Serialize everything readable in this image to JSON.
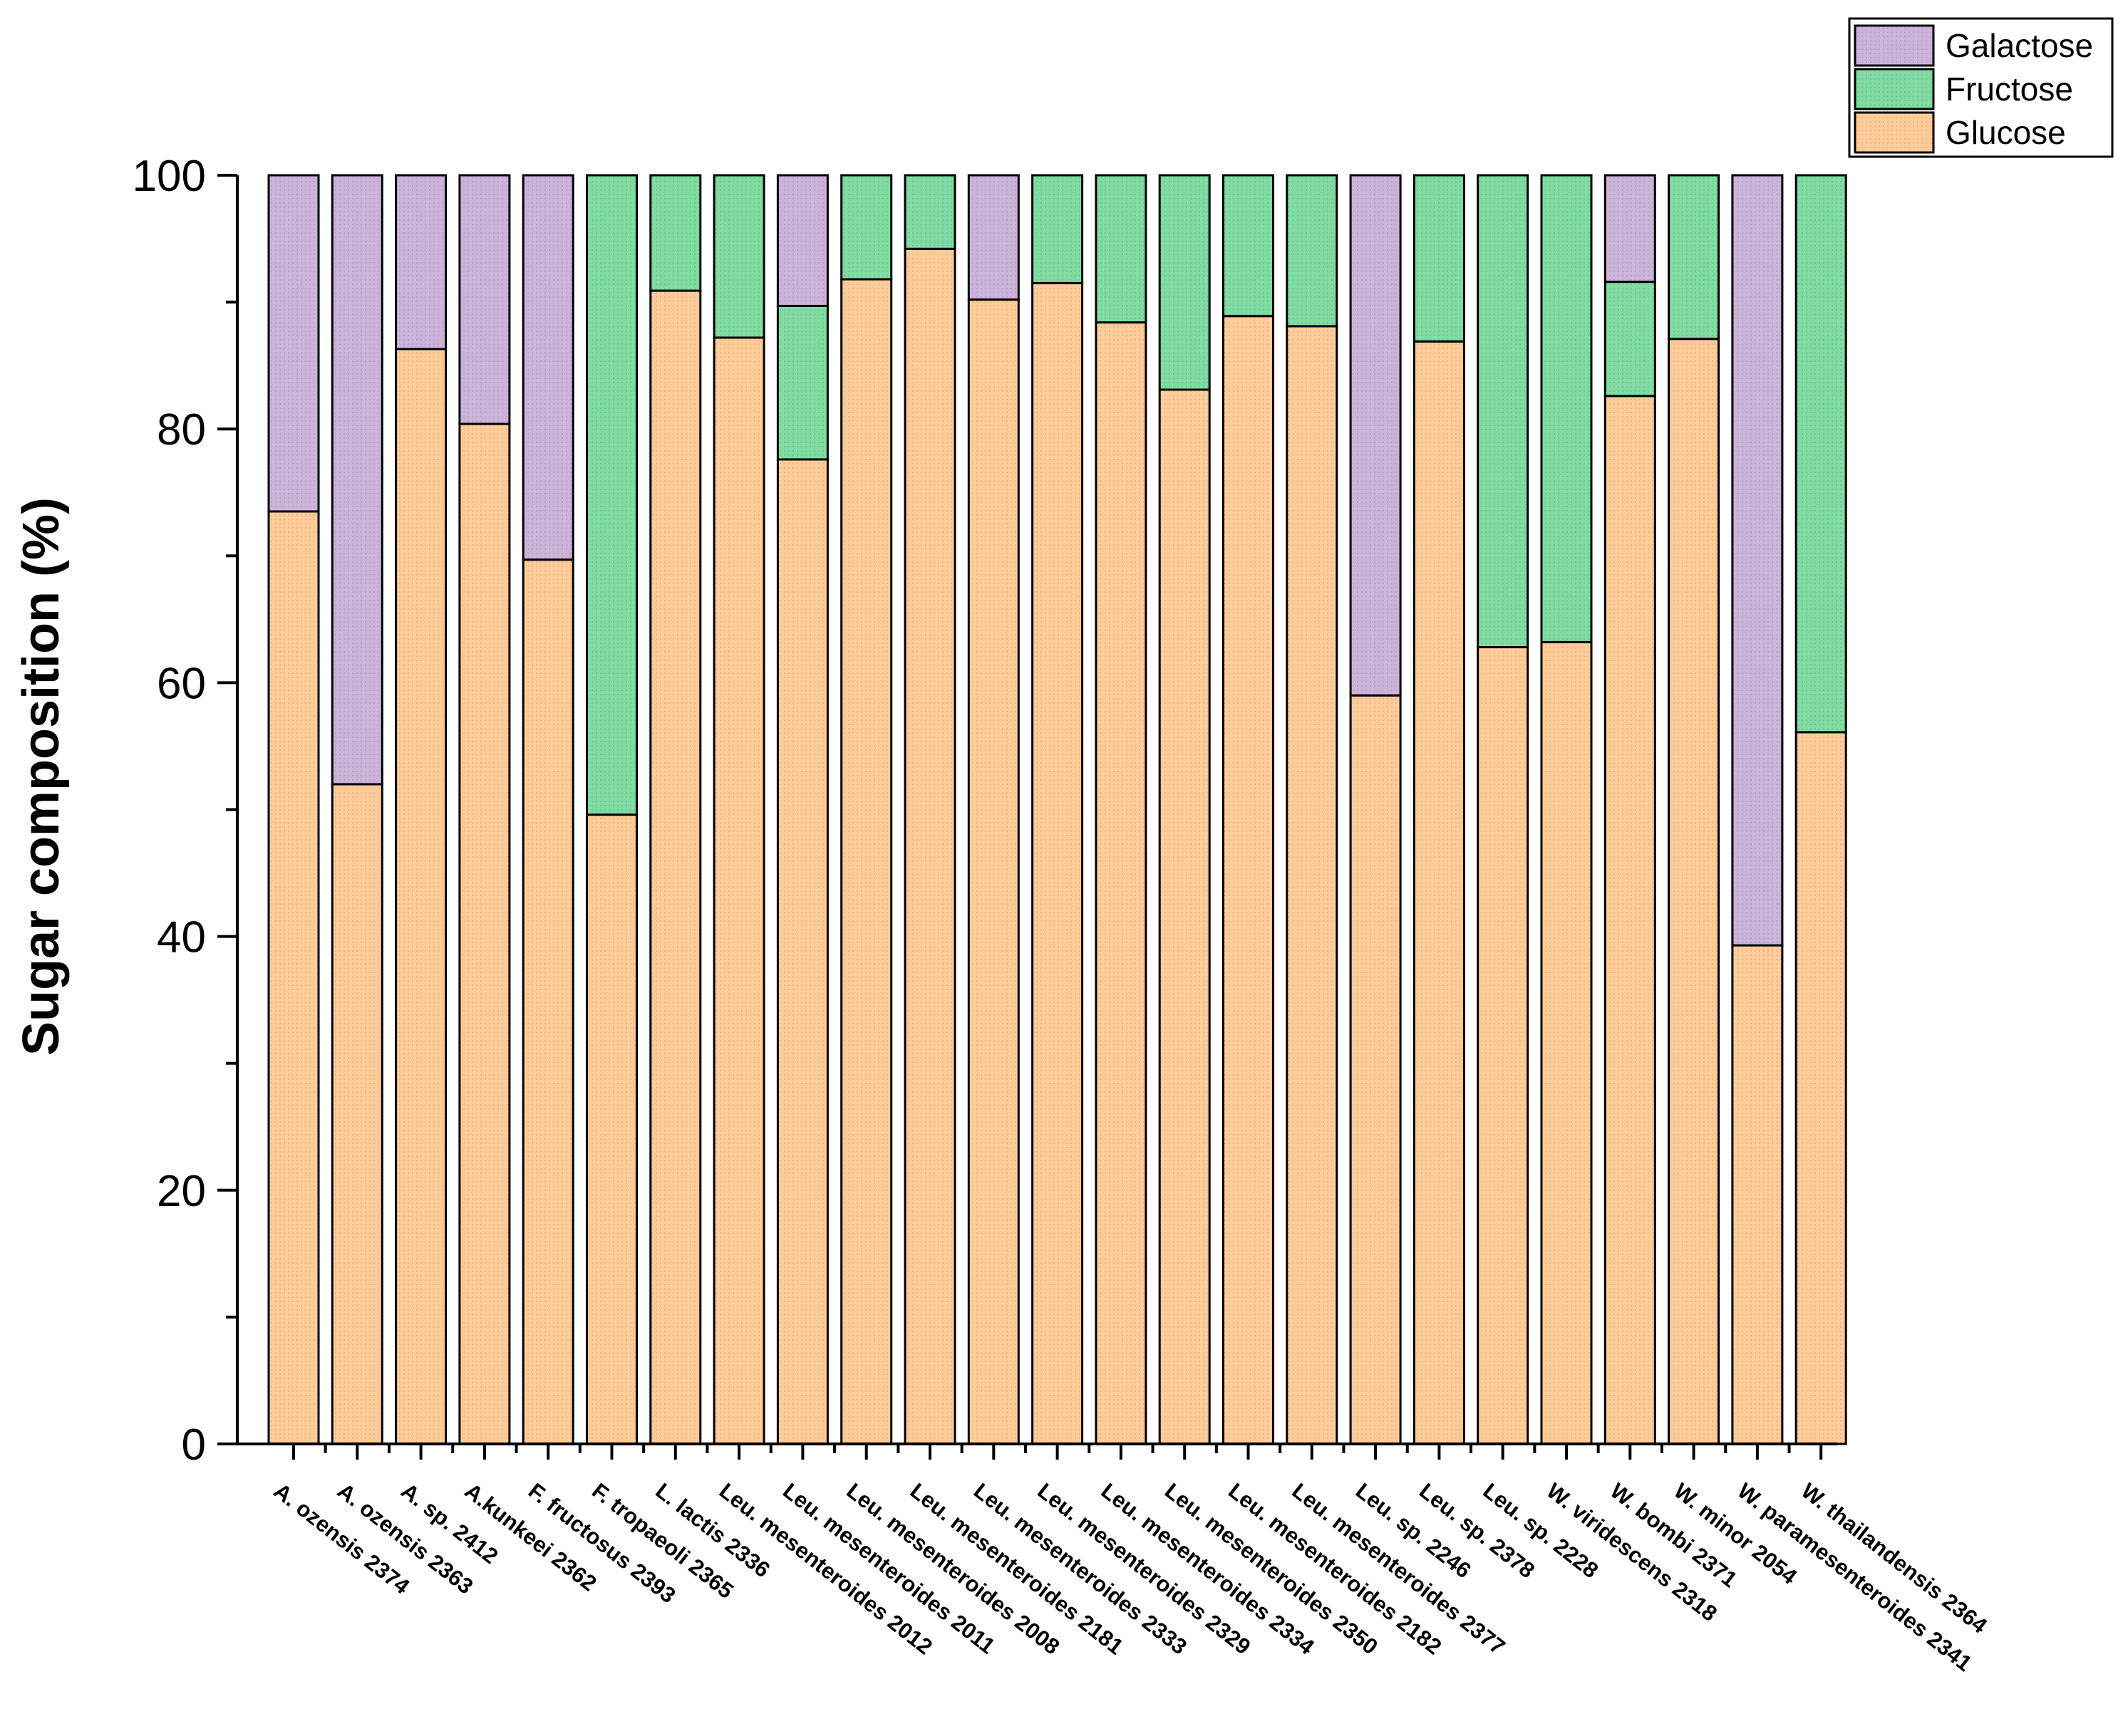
{
  "chart_data": {
    "type": "bar",
    "stacked": true,
    "ylabel": "Sugar composition (%)",
    "xlabel": "",
    "ylim": [
      0,
      100
    ],
    "yticks": [
      "0",
      "20",
      "40",
      "60",
      "80",
      "100"
    ],
    "legend_position": "top-right",
    "categories": [
      "A. ozensis 2374",
      "A. ozensis 2363",
      "A. sp. 2412",
      "A.kunkeei 2362",
      "F. fructosus  2393",
      "F. tropaeoli  2365",
      "L. lactis 2336",
      "Leu. mesenteroides 2012",
      "Leu. mesenteroides 2011",
      "Leu. mesenteroides 2008",
      "Leu. mesenteroides 2181",
      "Leu. mesenteroides 2333",
      "Leu. mesenteroides 2329",
      "Leu. mesenteroides 2334",
      "Leu. mesenteroides 2350",
      "Leu. mesenteroides 2182",
      "Leu. mesenteroides 2377",
      "Leu. sp. 2246",
      "Leu. sp. 2378",
      "Leu. sp.  2228",
      "W.  viridescens  2318",
      "W. bombi 2371",
      "W. minor 2054",
      "W. paramesenteroides 2341",
      "W. thailandensis 2364"
    ],
    "series": [
      {
        "name": "Glucose",
        "color": "#ffcc99",
        "values": [
          73.5,
          52.0,
          86.3,
          80.4,
          69.7,
          49.6,
          90.9,
          87.2,
          77.6,
          91.8,
          94.2,
          90.2,
          91.5,
          88.4,
          83.1,
          88.9,
          88.1,
          59.0,
          86.9,
          62.8,
          63.2,
          82.6,
          87.1,
          39.3,
          56.1
        ]
      },
      {
        "name": "Fructose",
        "color": "#7fdca2",
        "values": [
          0,
          0,
          0,
          0,
          0,
          50.4,
          9.1,
          12.8,
          12.1,
          8.2,
          5.8,
          0,
          8.5,
          11.6,
          16.9,
          11.1,
          11.9,
          0,
          13.1,
          37.2,
          36.8,
          9.0,
          12.9,
          0,
          43.9
        ]
      },
      {
        "name": "Galactose",
        "color": "#ccb3da",
        "values": [
          26.5,
          48.0,
          13.7,
          19.6,
          30.3,
          0,
          0,
          0,
          10.3,
          0,
          0,
          9.8,
          0,
          0,
          0,
          0,
          0,
          41.0,
          0,
          0,
          0,
          8.4,
          0,
          60.7,
          0
        ]
      }
    ],
    "legend": [
      "Galactose",
      "Fructose",
      "Glucose"
    ]
  }
}
